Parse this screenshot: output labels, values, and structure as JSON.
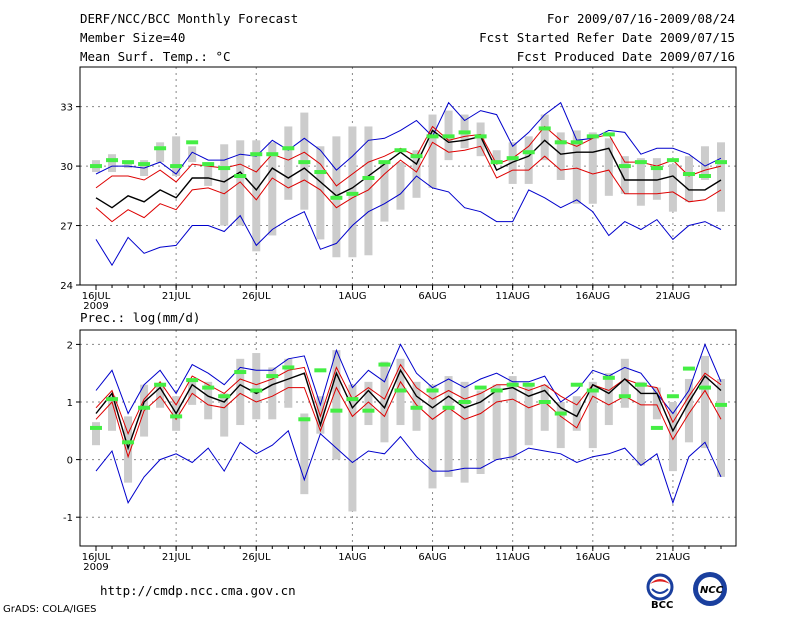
{
  "header": {
    "line1_left": "DERF/NCC/BCC Monthly Forecast",
    "line2_left": "Member Size=40",
    "line3_left": "Mean Surf. Temp.: °C",
    "line1_right": "For 2009/07/16-2009/08/24",
    "line2_right": "Fcst Started Refer Date 2009/07/15",
    "line3_right": "Fcst Produced Date 2009/07/16"
  },
  "footer": {
    "url": "http://cmdp.ncc.cma.gov.cn",
    "grads": "GrADS: COLA/IGES",
    "logo_bcc": "BCC",
    "logo_ncc": "NCC"
  },
  "colors": {
    "envelope": "#0000cc",
    "spread": "#dd0000",
    "mean": "#000000",
    "bars": "#cccccc",
    "marker": "#44ee44",
    "grid": "#888888"
  },
  "chart_data": [
    {
      "type": "line",
      "title": "Mean Surf. Temp.: °C",
      "x": [
        "16JUL",
        "17JUL",
        "18JUL",
        "19JUL",
        "20JUL",
        "21JUL",
        "22JUL",
        "23JUL",
        "24JUL",
        "25JUL",
        "26JUL",
        "27JUL",
        "28JUL",
        "29JUL",
        "30JUL",
        "31JUL",
        "1AUG",
        "2AUG",
        "3AUG",
        "4AUG",
        "5AUG",
        "6AUG",
        "7AUG",
        "8AUG",
        "9AUG",
        "10AUG",
        "11AUG",
        "12AUG",
        "13AUG",
        "14AUG",
        "15AUG",
        "16AUG",
        "17AUG",
        "18AUG",
        "19AUG",
        "20AUG",
        "21AUG",
        "22AUG",
        "23AUG",
        "24AUG"
      ],
      "x_tick_labels": [
        "16JUL",
        "21JUL",
        "26JUL",
        "1AUG",
        "6AUG",
        "11AUG",
        "16AUG",
        "21AUG"
      ],
      "x_tick_index": [
        0,
        5,
        10,
        16,
        21,
        26,
        31,
        36
      ],
      "year_label": "2009",
      "ylim": [
        24,
        35
      ],
      "yticks": [
        24,
        27,
        30,
        33
      ],
      "series": [
        {
          "name": "max",
          "values": [
            29.6,
            30.0,
            30.0,
            29.9,
            30.2,
            29.6,
            30.7,
            30.3,
            30.3,
            30.6,
            30.5,
            31.3,
            30.8,
            31.4,
            30.8,
            29.8,
            30.5,
            31.3,
            31.4,
            31.8,
            32.3,
            31.5,
            33.2,
            32.3,
            32.8,
            32.6,
            31.0,
            31.7,
            32.6,
            33.2,
            31.3,
            31.4,
            31.8,
            31.7,
            30.6,
            30.9,
            30.9,
            30.6,
            30.0,
            30.4
          ]
        },
        {
          "name": "upper",
          "values": [
            28.9,
            29.5,
            29.5,
            29.3,
            29.8,
            29.2,
            30.1,
            30.0,
            29.9,
            30.1,
            29.7,
            30.6,
            30.3,
            30.7,
            30.1,
            29.0,
            29.6,
            30.2,
            30.5,
            30.9,
            30.5,
            32.0,
            31.3,
            31.5,
            31.6,
            30.1,
            30.4,
            31.0,
            32.0,
            31.3,
            31.0,
            31.4,
            31.6,
            30.2,
            30.2,
            30.0,
            30.3,
            29.5,
            29.8,
            30.0
          ]
        },
        {
          "name": "mean",
          "values": [
            28.4,
            27.9,
            28.5,
            28.2,
            28.8,
            28.4,
            29.4,
            29.4,
            29.2,
            29.7,
            28.8,
            29.9,
            29.4,
            29.9,
            29.2,
            28.5,
            28.9,
            29.5,
            30.1,
            30.7,
            30.1,
            31.8,
            31.2,
            31.3,
            31.5,
            29.8,
            30.2,
            30.5,
            31.3,
            30.6,
            30.7,
            30.7,
            30.9,
            29.3,
            29.3,
            29.3,
            29.5,
            28.8,
            28.8,
            29.3
          ]
        },
        {
          "name": "lower",
          "values": [
            27.9,
            27.2,
            27.8,
            27.4,
            28.1,
            27.8,
            28.8,
            28.9,
            28.6,
            29.2,
            28.3,
            29.4,
            28.9,
            29.3,
            28.8,
            27.9,
            28.4,
            28.8,
            29.6,
            30.3,
            29.7,
            31.2,
            30.7,
            30.8,
            31.0,
            29.4,
            29.8,
            29.8,
            30.5,
            29.8,
            29.9,
            29.6,
            29.8,
            28.6,
            28.6,
            28.6,
            28.7,
            28.2,
            28.3,
            28.8
          ]
        },
        {
          "name": "min",
          "values": [
            26.3,
            25.0,
            26.4,
            25.6,
            25.9,
            26.0,
            27.0,
            27.0,
            26.7,
            27.5,
            26.0,
            26.8,
            27.3,
            27.7,
            25.8,
            26.1,
            27.0,
            27.7,
            28.1,
            28.6,
            29.5,
            28.9,
            28.7,
            27.9,
            27.7,
            27.2,
            27.2,
            28.8,
            28.4,
            27.9,
            28.3,
            27.7,
            26.5,
            27.2,
            26.8,
            27.3,
            26.3,
            27.0,
            27.2,
            26.8
          ]
        }
      ],
      "bars": {
        "low": [
          29.7,
          29.7,
          29.9,
          29.5,
          30.2,
          29.5,
          30.2,
          29.0,
          27.0,
          27.0,
          25.7,
          26.5,
          28.3,
          27.8,
          26.3,
          25.4,
          25.4,
          25.5,
          27.2,
          27.8,
          28.4,
          28.9,
          30.3,
          30.9,
          30.5,
          30.1,
          29.1,
          29.1,
          30.3,
          29.3,
          28.1,
          28.1,
          28.5,
          28.6,
          28.0,
          28.3,
          27.7,
          28.2,
          29.3,
          27.7
        ],
        "high": [
          30.3,
          30.6,
          30.2,
          30.3,
          31.2,
          31.5,
          31.0,
          30.2,
          31.1,
          31.3,
          31.3,
          31.2,
          32.0,
          32.7,
          31.0,
          31.5,
          32.0,
          32.0,
          30.2,
          30.2,
          30.8,
          32.6,
          32.8,
          32.6,
          32.2,
          30.8,
          31.2,
          31.5,
          32.6,
          31.7,
          31.8,
          31.7,
          31.4,
          30.5,
          30.4,
          30.4,
          30.1,
          30.5,
          31.0,
          31.2
        ]
      },
      "markers": [
        30.0,
        30.3,
        30.2,
        30.1,
        30.9,
        30.0,
        31.2,
        30.1,
        29.9,
        29.5,
        30.6,
        30.6,
        30.9,
        30.2,
        29.7,
        28.4,
        28.6,
        29.4,
        30.2,
        30.8,
        30.5,
        31.5,
        31.5,
        31.7,
        31.5,
        30.2,
        30.4,
        30.7,
        31.9,
        31.2,
        31.2,
        31.5,
        31.6,
        30.0,
        30.2,
        29.9,
        30.3,
        29.6,
        29.5,
        30.2
      ]
    },
    {
      "type": "line",
      "title": "Prec.: log(mm/d)",
      "x": [
        "16JUL",
        "17JUL",
        "18JUL",
        "19JUL",
        "20JUL",
        "21JUL",
        "22JUL",
        "23JUL",
        "24JUL",
        "25JUL",
        "26JUL",
        "27JUL",
        "28JUL",
        "29JUL",
        "30JUL",
        "31JUL",
        "1AUG",
        "2AUG",
        "3AUG",
        "4AUG",
        "5AUG",
        "6AUG",
        "7AUG",
        "8AUG",
        "9AUG",
        "10AUG",
        "11AUG",
        "12AUG",
        "13AUG",
        "14AUG",
        "15AUG",
        "16AUG",
        "17AUG",
        "18AUG",
        "19AUG",
        "20AUG",
        "21AUG",
        "22AUG",
        "23AUG",
        "24AUG"
      ],
      "x_tick_labels": [
        "16JUL",
        "21JUL",
        "26JUL",
        "1AUG",
        "6AUG",
        "11AUG",
        "16AUG",
        "21AUG"
      ],
      "x_tick_index": [
        0,
        5,
        10,
        16,
        21,
        26,
        31,
        36
      ],
      "year_label": "2009",
      "ylim": [
        -1.5,
        2.25
      ],
      "yticks": [
        -1,
        0,
        1,
        2
      ],
      "series": [
        {
          "name": "max",
          "values": [
            1.2,
            1.55,
            0.8,
            1.3,
            1.55,
            1.15,
            1.65,
            1.5,
            1.3,
            1.6,
            1.55,
            1.55,
            1.75,
            1.8,
            0.95,
            1.9,
            1.25,
            1.55,
            1.35,
            2.0,
            1.5,
            1.25,
            1.4,
            1.25,
            1.4,
            1.5,
            1.35,
            1.35,
            1.45,
            1.0,
            1.2,
            1.55,
            1.45,
            1.6,
            1.5,
            1.15,
            0.8,
            1.2,
            2.0,
            1.35
          ]
        },
        {
          "name": "upper",
          "values": [
            0.9,
            1.2,
            0.45,
            1.05,
            1.35,
            0.95,
            1.45,
            1.3,
            1.15,
            1.4,
            1.3,
            1.4,
            1.55,
            1.6,
            0.75,
            1.6,
            1.05,
            1.25,
            1.05,
            1.65,
            1.25,
            1.05,
            1.2,
            1.05,
            1.15,
            1.3,
            1.3,
            1.2,
            1.3,
            1.1,
            0.95,
            1.3,
            1.2,
            1.4,
            1.3,
            1.25,
            0.65,
            1.1,
            1.5,
            1.3
          ]
        },
        {
          "name": "mean",
          "values": [
            0.8,
            1.15,
            0.2,
            1.0,
            1.25,
            0.8,
            1.3,
            1.1,
            1.0,
            1.3,
            1.15,
            1.3,
            1.4,
            1.5,
            0.6,
            1.5,
            0.9,
            1.2,
            0.9,
            1.55,
            1.1,
            0.9,
            1.1,
            0.9,
            1.0,
            1.2,
            1.25,
            1.1,
            1.2,
            0.9,
            0.75,
            1.3,
            1.15,
            1.4,
            1.15,
            1.15,
            0.5,
            1.0,
            1.45,
            1.2
          ]
        },
        {
          "name": "lower",
          "values": [
            0.7,
            1.0,
            0.05,
            0.85,
            1.1,
            0.7,
            1.15,
            0.95,
            0.9,
            1.15,
            1.0,
            1.1,
            1.25,
            1.25,
            0.5,
            1.25,
            0.75,
            1.0,
            0.75,
            1.35,
            0.95,
            0.7,
            0.9,
            0.7,
            0.8,
            1.0,
            1.05,
            0.9,
            1.0,
            0.75,
            0.55,
            1.1,
            0.95,
            1.1,
            0.95,
            0.95,
            0.35,
            0.8,
            1.2,
            0.7
          ]
        },
        {
          "name": "min",
          "values": [
            -0.2,
            0.15,
            -0.75,
            -0.3,
            0.0,
            0.1,
            -0.05,
            0.2,
            -0.2,
            0.3,
            0.1,
            0.25,
            0.5,
            -0.35,
            0.45,
            0.2,
            -0.05,
            0.15,
            0.1,
            0.4,
            0.05,
            -0.2,
            -0.2,
            -0.15,
            -0.15,
            0.0,
            0.05,
            0.2,
            0.15,
            0.1,
            -0.05,
            0.05,
            0.1,
            0.2,
            -0.1,
            0.1,
            -0.75,
            0.05,
            0.3,
            -0.3
          ]
        }
      ],
      "bars": {
        "low": [
          0.25,
          0.5,
          -0.4,
          0.4,
          0.9,
          0.5,
          0.95,
          0.7,
          0.4,
          0.6,
          0.7,
          0.7,
          0.9,
          -0.6,
          0.45,
          0.0,
          -0.9,
          0.6,
          0.3,
          0.6,
          0.5,
          -0.5,
          -0.3,
          -0.4,
          -0.25,
          0.0,
          0.0,
          0.25,
          0.5,
          0.2,
          0.5,
          0.2,
          0.6,
          0.9,
          -0.1,
          0.7,
          -0.2,
          0.3,
          0.2,
          -0.3
        ],
        "high": [
          0.65,
          1.1,
          0.75,
          1.3,
          1.3,
          1.1,
          1.4,
          1.35,
          1.15,
          1.75,
          1.85,
          1.6,
          1.75,
          0.8,
          1.1,
          1.9,
          1.3,
          1.35,
          1.7,
          1.75,
          1.35,
          1.3,
          1.45,
          1.35,
          1.2,
          1.3,
          1.45,
          1.3,
          1.3,
          1.0,
          1.1,
          1.35,
          1.5,
          1.75,
          1.35,
          1.25,
          1.0,
          1.4,
          1.8,
          1.4
        ]
      },
      "markers": [
        0.55,
        1.05,
        0.3,
        0.9,
        1.3,
        0.75,
        1.38,
        1.25,
        1.1,
        1.52,
        1.2,
        1.45,
        1.6,
        0.7,
        1.55,
        0.85,
        1.05,
        0.85,
        1.65,
        1.2,
        0.9,
        1.2,
        0.9,
        1.0,
        1.25,
        1.2,
        1.3,
        1.3,
        1.0,
        0.8,
        1.3,
        1.2,
        1.42,
        1.1,
        1.3,
        0.55,
        1.1,
        1.58,
        1.25,
        0.95
      ]
    }
  ]
}
